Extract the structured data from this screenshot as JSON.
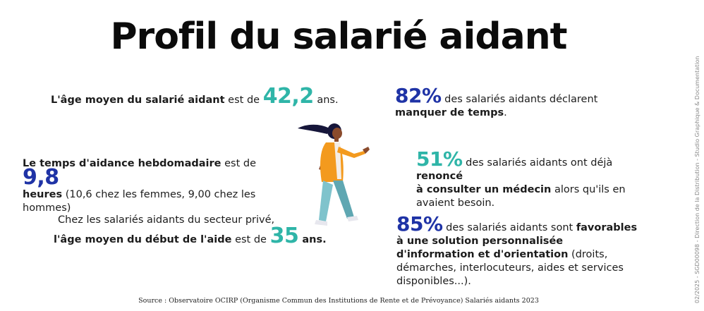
{
  "title": "Profil du salarié aidant",
  "stats_left": {
    "age": {
      "before": "L'âge moyen du salarié aidant",
      "mid": " est de ",
      "value": "42,2",
      "after": " ans."
    },
    "time": {
      "bold1": "Le temps d'aidance hebdomadaire",
      "mid": " est de ",
      "value": "9,8",
      "bold2": "heures",
      "after": " (10,6 chez les femmes, 9,00 chez les hommes)"
    },
    "start": {
      "line1": "Chez les salariés aidants du secteur privé,",
      "bold": "l'âge moyen du début de l'aide",
      "mid": " est de ",
      "value": "35",
      "after": " ans."
    }
  },
  "stats_right": {
    "time_lack": {
      "value": "82%",
      "text": " des salariés aidants déclarent",
      "bold": "manquer de temps",
      "after": "."
    },
    "doctor": {
      "value": "51%",
      "text": " des salariés aidants ont déjà ",
      "bold1": "renoncé",
      "bold2": "à consulter un médecin",
      "after": " alors qu'ils en avaient besoin."
    },
    "solution": {
      "value": "85%",
      "text": " des salariés aidants sont ",
      "bold1": "favorables à une solution personnalisée d'information et d'orientation",
      "after": " (droits, démarches, interlocuteurs, aides et services disponibles...)."
    }
  },
  "source": "Source : Observatoire OCIRP (Organisme Commun des Institutions de Rente et de Prévoyance) Salariés aidants 2023",
  "side_note": "02/2025 - SGD00098 - Direction de la Distribution - Studio Graphique & Documentation",
  "colors": {
    "teal": "#2fb5a8",
    "navy": "#1f33a6",
    "orange": "#f39a1e",
    "pants": "#7fc3cc"
  }
}
